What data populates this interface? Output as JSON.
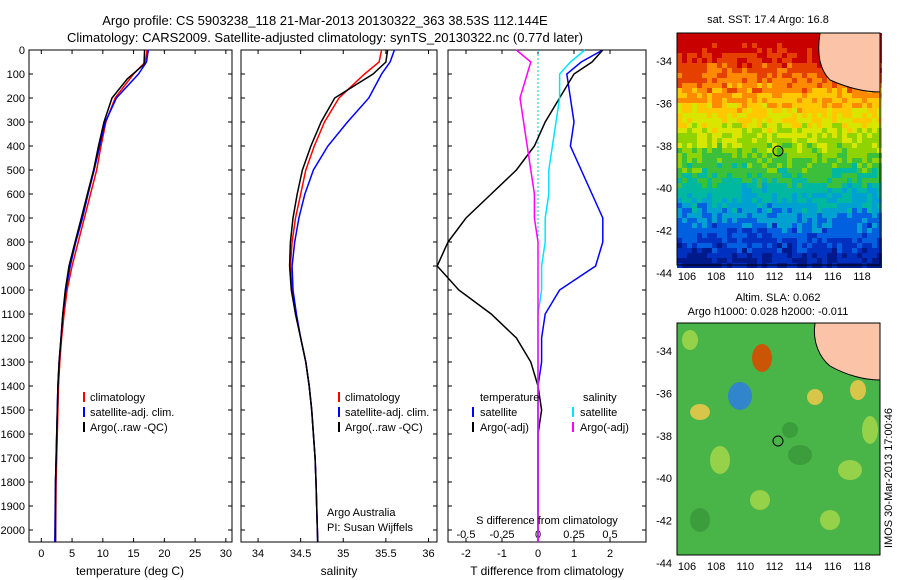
{
  "header": {
    "title_line1": "Argo profile: CS 5903238_118 21-Mar-2013 20130322_363 38.53S 112.144E",
    "title_line2": "Climatology: CARS2009. Satellite-adjusted climatology: synTS_20130322.nc (0.77d later)"
  },
  "colors": {
    "climatology": "#ff0000",
    "satellite": "#0000ff",
    "argo": "#000000",
    "sat_s": "#00e5ff",
    "argo_s_adj": "#ff00ff",
    "ref_line": "#00cccc"
  },
  "depth_ticks": [
    0,
    100,
    200,
    300,
    400,
    500,
    600,
    700,
    800,
    900,
    1000,
    1100,
    1200,
    1300,
    1400,
    1500,
    1600,
    1700,
    1800,
    1900,
    2000
  ],
  "legend": {
    "climatology": "climatology",
    "satellite_clim": "satellite-adj. clim.",
    "argo_raw": "Argo(..raw -QC)",
    "temperature": "temperature",
    "salinity": "salinity",
    "satellite": "satellite",
    "argo_adj": "Argo(-adj)"
  },
  "note": {
    "line1": "Argo Australia",
    "line2": "PI: Susan Wijffels"
  },
  "right": {
    "sst_title": "sat. SST: 17.4 Argo: 16.8",
    "sla_line1": "Altim. SLA: 0.062",
    "sla_line2": "Argo h1000: 0.028 h2000: -0.011",
    "stamp": "IMOS 30-Mar-2013 17:00:46",
    "lat_ticks": [
      "-34",
      "-36",
      "-38",
      "-40",
      "-42",
      "-44"
    ],
    "lon_ticks": [
      "106",
      "108",
      "110",
      "112",
      "114",
      "116",
      "118"
    ]
  },
  "chart_data": [
    {
      "type": "line",
      "title": "",
      "xlabel": "temperature (deg C)",
      "ylabel": "",
      "xlim": [
        -2,
        31
      ],
      "ylim": [
        2050,
        0
      ],
      "xticks": [
        0,
        5,
        10,
        15,
        20,
        25,
        30
      ],
      "series": [
        {
          "name": "climatology",
          "color": "#ff0000",
          "x": [
            17.2,
            16.9,
            15.0,
            12.0,
            10.5,
            9.7,
            9.0,
            8.0,
            7.0,
            6.0,
            5.0,
            4.2,
            3.7,
            3.3,
            3.0,
            2.8,
            2.7,
            2.6,
            2.5,
            2.4,
            2.3
          ],
          "y": [
            0,
            50,
            100,
            200,
            300,
            400,
            500,
            600,
            700,
            800,
            900,
            1000,
            1100,
            1200,
            1300,
            1400,
            1500,
            1600,
            1700,
            1800,
            2050
          ]
        },
        {
          "name": "satellite-adj. clim.",
          "color": "#0000ff",
          "x": [
            17.4,
            17.1,
            15.8,
            12.2,
            10.4,
            9.5,
            8.6,
            7.6,
            6.7,
            5.6,
            4.7,
            4.0,
            3.5,
            3.2,
            2.9,
            2.7,
            2.6,
            2.5,
            2.4,
            2.3,
            2.2
          ],
          "y": [
            0,
            50,
            100,
            200,
            300,
            400,
            500,
            600,
            700,
            800,
            900,
            1000,
            1100,
            1200,
            1300,
            1400,
            1500,
            1600,
            1700,
            1800,
            2050
          ]
        },
        {
          "name": "Argo(..raw -QC)",
          "color": "#000000",
          "x": [
            16.8,
            16.7,
            14.0,
            11.5,
            10.2,
            9.3,
            8.5,
            7.5,
            6.5,
            5.5,
            4.5,
            3.9,
            3.5,
            3.2,
            2.9,
            2.7,
            2.6,
            2.5,
            2.4,
            2.3,
            2.3
          ],
          "y": [
            0,
            60,
            120,
            200,
            300,
            400,
            500,
            600,
            700,
            800,
            900,
            1000,
            1100,
            1200,
            1300,
            1400,
            1500,
            1600,
            1700,
            1800,
            2050
          ]
        }
      ]
    },
    {
      "type": "line",
      "title": "",
      "xlabel": "salinity",
      "ylabel": "",
      "xlim": [
        33.8,
        36.1
      ],
      "ylim": [
        2050,
        0
      ],
      "xticks": [
        34,
        34.5,
        35,
        35.5,
        36
      ],
      "series": [
        {
          "name": "climatology",
          "color": "#ff0000",
          "x": [
            35.45,
            35.42,
            35.25,
            34.95,
            34.78,
            34.66,
            34.56,
            34.5,
            34.44,
            34.4,
            34.38,
            34.4,
            34.44,
            34.5,
            34.56,
            34.6,
            34.63,
            34.65,
            34.67,
            34.68,
            34.7
          ],
          "y": [
            0,
            50,
            100,
            200,
            300,
            400,
            500,
            600,
            700,
            800,
            900,
            1000,
            1100,
            1200,
            1300,
            1400,
            1500,
            1600,
            1700,
            1800,
            2050
          ]
        },
        {
          "name": "satellite-adj. clim.",
          "color": "#0000ff",
          "x": [
            35.6,
            35.55,
            35.45,
            35.3,
            35.05,
            34.82,
            34.65,
            34.55,
            34.48,
            34.43,
            34.4,
            34.41,
            34.45,
            34.5,
            34.56,
            34.6,
            34.63,
            34.65,
            34.67,
            34.68,
            34.7
          ],
          "y": [
            0,
            50,
            100,
            200,
            300,
            400,
            500,
            600,
            700,
            800,
            900,
            1000,
            1100,
            1200,
            1300,
            1400,
            1500,
            1600,
            1700,
            1800,
            2050
          ]
        },
        {
          "name": "Argo(..raw -QC)",
          "color": "#000000",
          "x": [
            35.52,
            35.5,
            35.35,
            34.9,
            34.74,
            34.62,
            34.52,
            34.46,
            34.41,
            34.38,
            34.37,
            34.39,
            34.44,
            34.5,
            34.56,
            34.6,
            34.63,
            34.65,
            34.67,
            34.68,
            34.7
          ],
          "y": [
            0,
            50,
            100,
            200,
            300,
            400,
            500,
            600,
            700,
            800,
            900,
            1000,
            1100,
            1200,
            1300,
            1400,
            1500,
            1600,
            1700,
            1800,
            2050
          ]
        }
      ]
    },
    {
      "type": "line",
      "title": "",
      "xlabel": "T difference from climatology",
      "xlabel_top": "S difference from climatology",
      "ylabel": "",
      "xlim": [
        -2.5,
        3.0
      ],
      "ylim": [
        2050,
        0
      ],
      "xticks": [
        -2,
        -1,
        0,
        1,
        2
      ],
      "xticks_s": [
        "-0.5",
        "-0.25",
        "0",
        "0.25",
        "0.5"
      ],
      "xticks_s_pos": [
        -2,
        -1,
        0,
        1,
        2
      ],
      "series": [
        {
          "name": "temperature satellite",
          "color": "#0000ff",
          "x": [
            1.8,
            1.2,
            0.8,
            0.9,
            1.0,
            0.9,
            1.2,
            1.5,
            1.8,
            1.8,
            1.6,
            0.6,
            0.2,
            0.1,
            0.1,
            0.0,
            0.0,
            0.0,
            0.0,
            0.0,
            0.0
          ],
          "y": [
            0,
            50,
            100,
            200,
            300,
            400,
            500,
            600,
            700,
            800,
            900,
            1000,
            1100,
            1200,
            1300,
            1400,
            1500,
            1600,
            1700,
            1800,
            2050
          ]
        },
        {
          "name": "temperature Argo(-adj)",
          "color": "#000000",
          "x": [
            1.8,
            1.5,
            1.0,
            0.6,
            0.2,
            -0.1,
            -0.6,
            -1.3,
            -2.0,
            -2.5,
            -2.8,
            -2.2,
            -1.3,
            -0.6,
            -0.2,
            0.0,
            0.1,
            0.0,
            0.0,
            0.0,
            0.0
          ],
          "y": [
            0,
            50,
            100,
            200,
            300,
            400,
            500,
            600,
            700,
            800,
            900,
            1000,
            1100,
            1200,
            1300,
            1400,
            1500,
            1600,
            1700,
            1800,
            2050
          ]
        },
        {
          "name": "salinity satellite",
          "color": "#00e5ff",
          "x": [
            1.3,
            0.9,
            0.6,
            0.6,
            0.5,
            0.4,
            0.3,
            0.3,
            0.2,
            0.2,
            0.1,
            0.1,
            0.0,
            0.0,
            0.0,
            0.0,
            0.0,
            0.0,
            0.0,
            0.0,
            0.0
          ],
          "y": [
            0,
            50,
            100,
            200,
            300,
            400,
            500,
            600,
            700,
            800,
            900,
            1000,
            1100,
            1200,
            1300,
            1400,
            1500,
            1600,
            1700,
            1800,
            2050
          ]
        },
        {
          "name": "salinity Argo(-adj)",
          "color": "#ff00ff",
          "x": [
            -0.6,
            -0.2,
            -0.3,
            -0.5,
            -0.4,
            -0.3,
            -0.2,
            -0.1,
            -0.1,
            0.0,
            0.0,
            0.0,
            0.0,
            0.0,
            0.0,
            0.0,
            0.0,
            0.0,
            0.0,
            0.0,
            0.0
          ],
          "y": [
            0,
            50,
            100,
            200,
            300,
            400,
            500,
            600,
            700,
            800,
            900,
            1000,
            1100,
            1200,
            1300,
            1400,
            1500,
            1600,
            1700,
            1800,
            2050
          ]
        }
      ]
    }
  ]
}
